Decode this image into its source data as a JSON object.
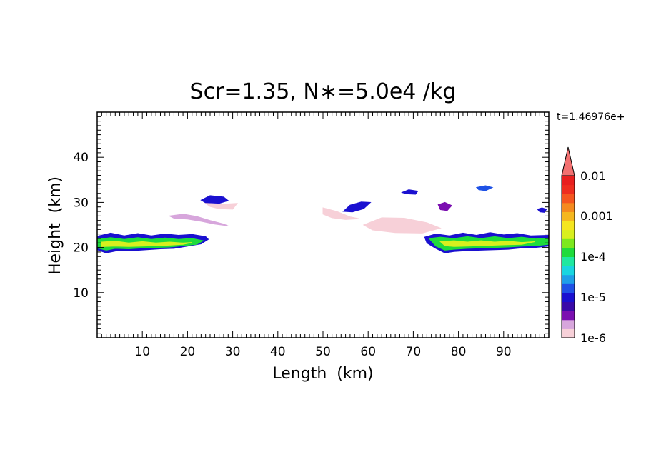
{
  "chart_data": {
    "type": "heatmap",
    "title": "Scr=1.35, N∗=5.0e4 /kg",
    "time_label": "t=1.46976e+",
    "xlabel": "Length  (km)",
    "ylabel": "Height  (km)",
    "xlim": [
      0,
      100
    ],
    "ylim": [
      0,
      50
    ],
    "x_ticks": [
      10,
      20,
      30,
      40,
      50,
      60,
      70,
      80,
      90
    ],
    "y_ticks": [
      10,
      20,
      30,
      40
    ],
    "colorbar": {
      "levels": [
        "1e-6",
        "1e-5",
        "1e-4",
        "0.001",
        "0.01"
      ],
      "colors": [
        "#f7d0d8",
        "#d7a6dc",
        "#7b0fb0",
        "#3a0aa8",
        "#1a10d0",
        "#1f52e6",
        "#1f9fe8",
        "#19d6e0",
        "#1fe8a0",
        "#1fdb3c",
        "#7de81f",
        "#d8ef1f",
        "#f5e51f",
        "#f5b71f",
        "#f58a1f",
        "#f5561f",
        "#ee2d1f",
        "#e81f1f"
      ],
      "extend_color": "#f27070"
    },
    "regions": [
      {
        "name": "left-layer-outer",
        "level": "#1a10d0",
        "points": [
          [
            0,
            22.5
          ],
          [
            3,
            23.2
          ],
          [
            6,
            22.6
          ],
          [
            9,
            23.1
          ],
          [
            12,
            22.6
          ],
          [
            15,
            23.0
          ],
          [
            18,
            22.7
          ],
          [
            21,
            22.9
          ],
          [
            24,
            22.4
          ],
          [
            24.6,
            21.8
          ],
          [
            23,
            20.8
          ],
          [
            20,
            20.3
          ],
          [
            17,
            19.8
          ],
          [
            14,
            19.7
          ],
          [
            11,
            19.5
          ],
          [
            8,
            19.3
          ],
          [
            5,
            19.4
          ],
          [
            2,
            18.8
          ],
          [
            0,
            19.5
          ]
        ]
      },
      {
        "name": "left-layer-green",
        "level": "#1fdb3c",
        "points": [
          [
            0,
            21.8
          ],
          [
            3,
            22.2
          ],
          [
            6,
            21.8
          ],
          [
            9,
            22.2
          ],
          [
            12,
            21.8
          ],
          [
            15,
            22.1
          ],
          [
            18,
            21.8
          ],
          [
            21,
            22.0
          ],
          [
            23.5,
            21.5
          ],
          [
            22,
            20.7
          ],
          [
            19,
            20.4
          ],
          [
            16,
            20.1
          ],
          [
            13,
            20.0
          ],
          [
            10,
            19.9
          ],
          [
            7,
            19.7
          ],
          [
            4,
            19.8
          ],
          [
            2,
            19.4
          ],
          [
            0,
            19.9
          ]
        ]
      },
      {
        "name": "left-layer-yellow",
        "level": "#d8ef1f",
        "points": [
          [
            1,
            21.2
          ],
          [
            4,
            21.4
          ],
          [
            7,
            21.0
          ],
          [
            10,
            21.3
          ],
          [
            13,
            21.0
          ],
          [
            16,
            21.2
          ],
          [
            19,
            21.0
          ],
          [
            21,
            21.1
          ],
          [
            19,
            20.7
          ],
          [
            16,
            20.5
          ],
          [
            13,
            20.4
          ],
          [
            10,
            20.3
          ],
          [
            7,
            20.2
          ],
          [
            4,
            20.3
          ],
          [
            1,
            20.2
          ]
        ]
      },
      {
        "name": "right-layer-outer",
        "level": "#1a10d0",
        "points": [
          [
            72.5,
            22.3
          ],
          [
            75,
            23.0
          ],
          [
            78,
            22.6
          ],
          [
            81,
            23.2
          ],
          [
            84,
            22.7
          ],
          [
            87,
            23.3
          ],
          [
            90,
            22.8
          ],
          [
            93,
            23.1
          ],
          [
            96,
            22.6
          ],
          [
            100,
            22.7
          ],
          [
            100,
            20.3
          ],
          [
            97,
            20.0
          ],
          [
            94,
            19.9
          ],
          [
            91,
            19.6
          ],
          [
            88,
            19.5
          ],
          [
            85,
            19.4
          ],
          [
            82,
            19.3
          ],
          [
            79,
            19.1
          ],
          [
            77,
            18.8
          ],
          [
            75,
            19.8
          ],
          [
            73,
            21.0
          ]
        ]
      },
      {
        "name": "right-layer-green",
        "level": "#1fdb3c",
        "points": [
          [
            73.5,
            22.0
          ],
          [
            76,
            22.3
          ],
          [
            79,
            22.0
          ],
          [
            82,
            22.4
          ],
          [
            85,
            22.0
          ],
          [
            88,
            22.4
          ],
          [
            91,
            22.0
          ],
          [
            94,
            22.3
          ],
          [
            97,
            21.9
          ],
          [
            100,
            22.0
          ],
          [
            100,
            20.7
          ],
          [
            97,
            20.4
          ],
          [
            94,
            20.3
          ],
          [
            91,
            20.1
          ],
          [
            88,
            20.0
          ],
          [
            85,
            19.9
          ],
          [
            82,
            19.8
          ],
          [
            79,
            19.6
          ],
          [
            77,
            19.4
          ],
          [
            75,
            20.3
          ]
        ]
      },
      {
        "name": "right-layer-yellow",
        "level": "#d8ef1f",
        "points": [
          [
            76,
            21.3
          ],
          [
            79,
            21.5
          ],
          [
            82,
            21.2
          ],
          [
            85,
            21.5
          ],
          [
            88,
            21.2
          ],
          [
            91,
            21.4
          ],
          [
            94,
            21.1
          ],
          [
            97,
            21.3
          ],
          [
            94,
            20.7
          ],
          [
            91,
            20.6
          ],
          [
            88,
            20.5
          ],
          [
            85,
            20.4
          ],
          [
            82,
            20.3
          ],
          [
            79,
            20.2
          ],
          [
            77,
            20.4
          ]
        ]
      },
      {
        "name": "left-thin-band",
        "level": "#d7a6dc",
        "points": [
          [
            16,
            27.0
          ],
          [
            19,
            27.4
          ],
          [
            22,
            26.9
          ],
          [
            25,
            26.0
          ],
          [
            28,
            25.2
          ],
          [
            29,
            24.8
          ],
          [
            26,
            25.2
          ],
          [
            23,
            25.8
          ],
          [
            20,
            26.3
          ],
          [
            17,
            26.5
          ]
        ]
      },
      {
        "name": "blob-30km",
        "level": "#1a10d0",
        "points": [
          [
            23,
            30.5
          ],
          [
            25,
            31.5
          ],
          [
            28,
            31.2
          ],
          [
            29,
            30.4
          ],
          [
            27,
            29.8
          ],
          [
            24,
            29.9
          ]
        ]
      },
      {
        "name": "blob-30km-halo",
        "level": "#f7d0d8",
        "points": [
          [
            24,
            29.8
          ],
          [
            28,
            29.6
          ],
          [
            31,
            29.8
          ],
          [
            30,
            28.5
          ],
          [
            27,
            28.6
          ],
          [
            25,
            29.1
          ]
        ]
      },
      {
        "name": "blob-56km",
        "level": "#1a10d0",
        "points": [
          [
            54.5,
            28.0
          ],
          [
            56,
            29.4
          ],
          [
            58.5,
            30.1
          ],
          [
            60.5,
            30.0
          ],
          [
            59,
            28.6
          ],
          [
            56.5,
            27.9
          ]
        ]
      },
      {
        "name": "blob-56km-halo",
        "level": "#f7d0d8",
        "points": [
          [
            50,
            28.8
          ],
          [
            53,
            28.0
          ],
          [
            56,
            26.8
          ],
          [
            58,
            26.4
          ],
          [
            55,
            26.2
          ],
          [
            52,
            26.6
          ],
          [
            50,
            27.4
          ]
        ]
      },
      {
        "name": "middle-band",
        "level": "#d7a6dc",
        "points": [
          [
            61,
            25.3
          ],
          [
            64,
            26.2
          ],
          [
            67,
            25.8
          ],
          [
            70,
            24.8
          ],
          [
            72,
            24.0
          ],
          [
            70,
            23.4
          ],
          [
            66,
            23.8
          ],
          [
            63,
            24.2
          ],
          [
            61,
            24.6
          ]
        ]
      },
      {
        "name": "middle-band-halo",
        "level": "#f7d0d8",
        "points": [
          [
            59,
            25.0
          ],
          [
            63,
            26.6
          ],
          [
            68,
            26.5
          ],
          [
            73,
            25.5
          ],
          [
            76,
            24.3
          ],
          [
            72,
            23.2
          ],
          [
            66,
            23.3
          ],
          [
            61,
            23.9
          ]
        ]
      },
      {
        "name": "blob-69km",
        "level": "#1a10d0",
        "points": [
          [
            67.5,
            32.2
          ],
          [
            69,
            32.8
          ],
          [
            71,
            32.5
          ],
          [
            70.5,
            31.8
          ],
          [
            68.5,
            31.9
          ]
        ]
      },
      {
        "name": "blob-77km",
        "level": "#7b0fb0",
        "points": [
          [
            75.5,
            29.5
          ],
          [
            77,
            30.0
          ],
          [
            78.5,
            29.3
          ],
          [
            77.5,
            28.2
          ],
          [
            76,
            28.4
          ]
        ]
      },
      {
        "name": "blob-86km",
        "level": "#1f52e6",
        "points": [
          [
            84,
            33.3
          ],
          [
            86,
            33.7
          ],
          [
            87.5,
            33.3
          ],
          [
            86,
            32.6
          ],
          [
            84.5,
            32.8
          ]
        ]
      },
      {
        "name": "blob-98km",
        "level": "#1a10d0",
        "points": [
          [
            97.5,
            28.5
          ],
          [
            98.5,
            28.8
          ],
          [
            99.5,
            28.5
          ],
          [
            99,
            27.8
          ],
          [
            98,
            27.9
          ]
        ]
      }
    ]
  }
}
